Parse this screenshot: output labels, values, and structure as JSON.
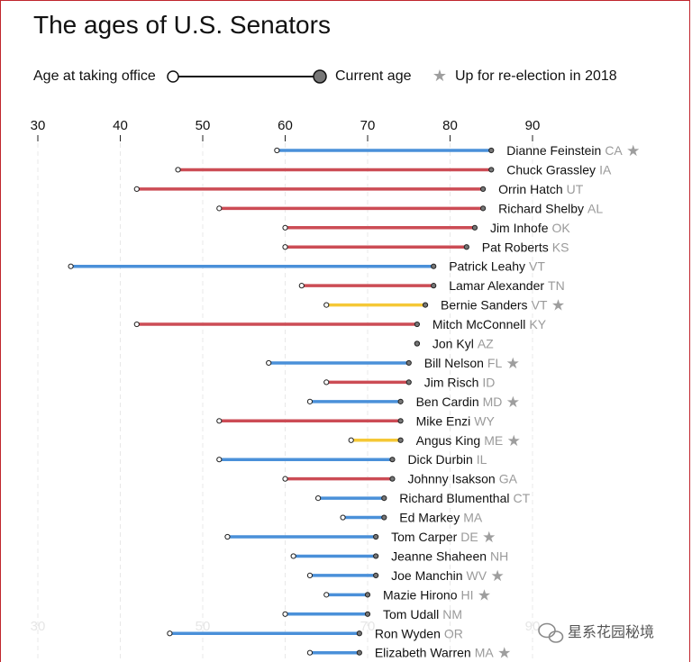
{
  "title": "The ages of U.S. Senators",
  "legend": {
    "start_label": "Age at taking office",
    "end_label": "Current age",
    "star_label": "Up for re-election in 2018"
  },
  "watermark": "星系花园秘境",
  "colors": {
    "D": "#4a90d9",
    "R": "#cc4c55",
    "I": "#f5c836",
    "star": "#9e9e9e",
    "state": "#9a9a9a",
    "dot_end": "#777777",
    "dot_start": "#ffffff"
  },
  "chart_data": {
    "type": "dumbbell",
    "x_ticks": [
      30,
      40,
      50,
      60,
      70,
      80,
      90
    ],
    "bottom_ticks": [
      30,
      50,
      70,
      90
    ],
    "xlim": [
      29,
      93
    ],
    "senators": [
      {
        "name": "Dianne Feinstein",
        "state": "CA",
        "party": "D",
        "start": 59,
        "end": 85,
        "up2018": true
      },
      {
        "name": "Chuck Grassley",
        "state": "IA",
        "party": "R",
        "start": 47,
        "end": 85,
        "up2018": false
      },
      {
        "name": "Orrin Hatch",
        "state": "UT",
        "party": "R",
        "start": 42,
        "end": 84,
        "up2018": false
      },
      {
        "name": "Richard Shelby",
        "state": "AL",
        "party": "R",
        "start": 52,
        "end": 84,
        "up2018": false
      },
      {
        "name": "Jim Inhofe",
        "state": "OK",
        "party": "R",
        "start": 60,
        "end": 83,
        "up2018": false
      },
      {
        "name": "Pat Roberts",
        "state": "KS",
        "party": "R",
        "start": 60,
        "end": 82,
        "up2018": false
      },
      {
        "name": "Patrick Leahy",
        "state": "VT",
        "party": "D",
        "start": 34,
        "end": 78,
        "up2018": false
      },
      {
        "name": "Lamar Alexander",
        "state": "TN",
        "party": "R",
        "start": 62,
        "end": 78,
        "up2018": false
      },
      {
        "name": "Bernie Sanders",
        "state": "VT",
        "party": "I",
        "start": 65,
        "end": 77,
        "up2018": true
      },
      {
        "name": "Mitch McConnell",
        "state": "KY",
        "party": "R",
        "start": 42,
        "end": 76,
        "up2018": false
      },
      {
        "name": "Jon Kyl",
        "state": "AZ",
        "party": "R",
        "start": 76,
        "end": 76,
        "up2018": false
      },
      {
        "name": "Bill Nelson",
        "state": "FL",
        "party": "D",
        "start": 58,
        "end": 75,
        "up2018": true
      },
      {
        "name": "Jim Risch",
        "state": "ID",
        "party": "R",
        "start": 65,
        "end": 75,
        "up2018": false
      },
      {
        "name": "Ben Cardin",
        "state": "MD",
        "party": "D",
        "start": 63,
        "end": 74,
        "up2018": true
      },
      {
        "name": "Mike Enzi",
        "state": "WY",
        "party": "R",
        "start": 52,
        "end": 74,
        "up2018": false
      },
      {
        "name": "Angus King",
        "state": "ME",
        "party": "I",
        "start": 68,
        "end": 74,
        "up2018": true
      },
      {
        "name": "Dick Durbin",
        "state": "IL",
        "party": "D",
        "start": 52,
        "end": 73,
        "up2018": false
      },
      {
        "name": "Johnny Isakson",
        "state": "GA",
        "party": "R",
        "start": 60,
        "end": 73,
        "up2018": false
      },
      {
        "name": "Richard Blumenthal",
        "state": "CT",
        "party": "D",
        "start": 64,
        "end": 72,
        "up2018": false
      },
      {
        "name": "Ed Markey",
        "state": "MA",
        "party": "D",
        "start": 67,
        "end": 72,
        "up2018": false
      },
      {
        "name": "Tom Carper",
        "state": "DE",
        "party": "D",
        "start": 53,
        "end": 71,
        "up2018": true
      },
      {
        "name": "Jeanne Shaheen",
        "state": "NH",
        "party": "D",
        "start": 61,
        "end": 71,
        "up2018": false
      },
      {
        "name": "Joe Manchin",
        "state": "WV",
        "party": "D",
        "start": 63,
        "end": 71,
        "up2018": true
      },
      {
        "name": "Mazie Hirono",
        "state": "HI",
        "party": "D",
        "start": 65,
        "end": 70,
        "up2018": true
      },
      {
        "name": "Tom Udall",
        "state": "NM",
        "party": "D",
        "start": 60,
        "end": 70,
        "up2018": false
      },
      {
        "name": "Ron Wyden",
        "state": "OR",
        "party": "D",
        "start": 46,
        "end": 69,
        "up2018": false
      },
      {
        "name": "Elizabeth Warren",
        "state": "MA",
        "party": "D",
        "start": 63,
        "end": 69,
        "up2018": true
      }
    ]
  }
}
